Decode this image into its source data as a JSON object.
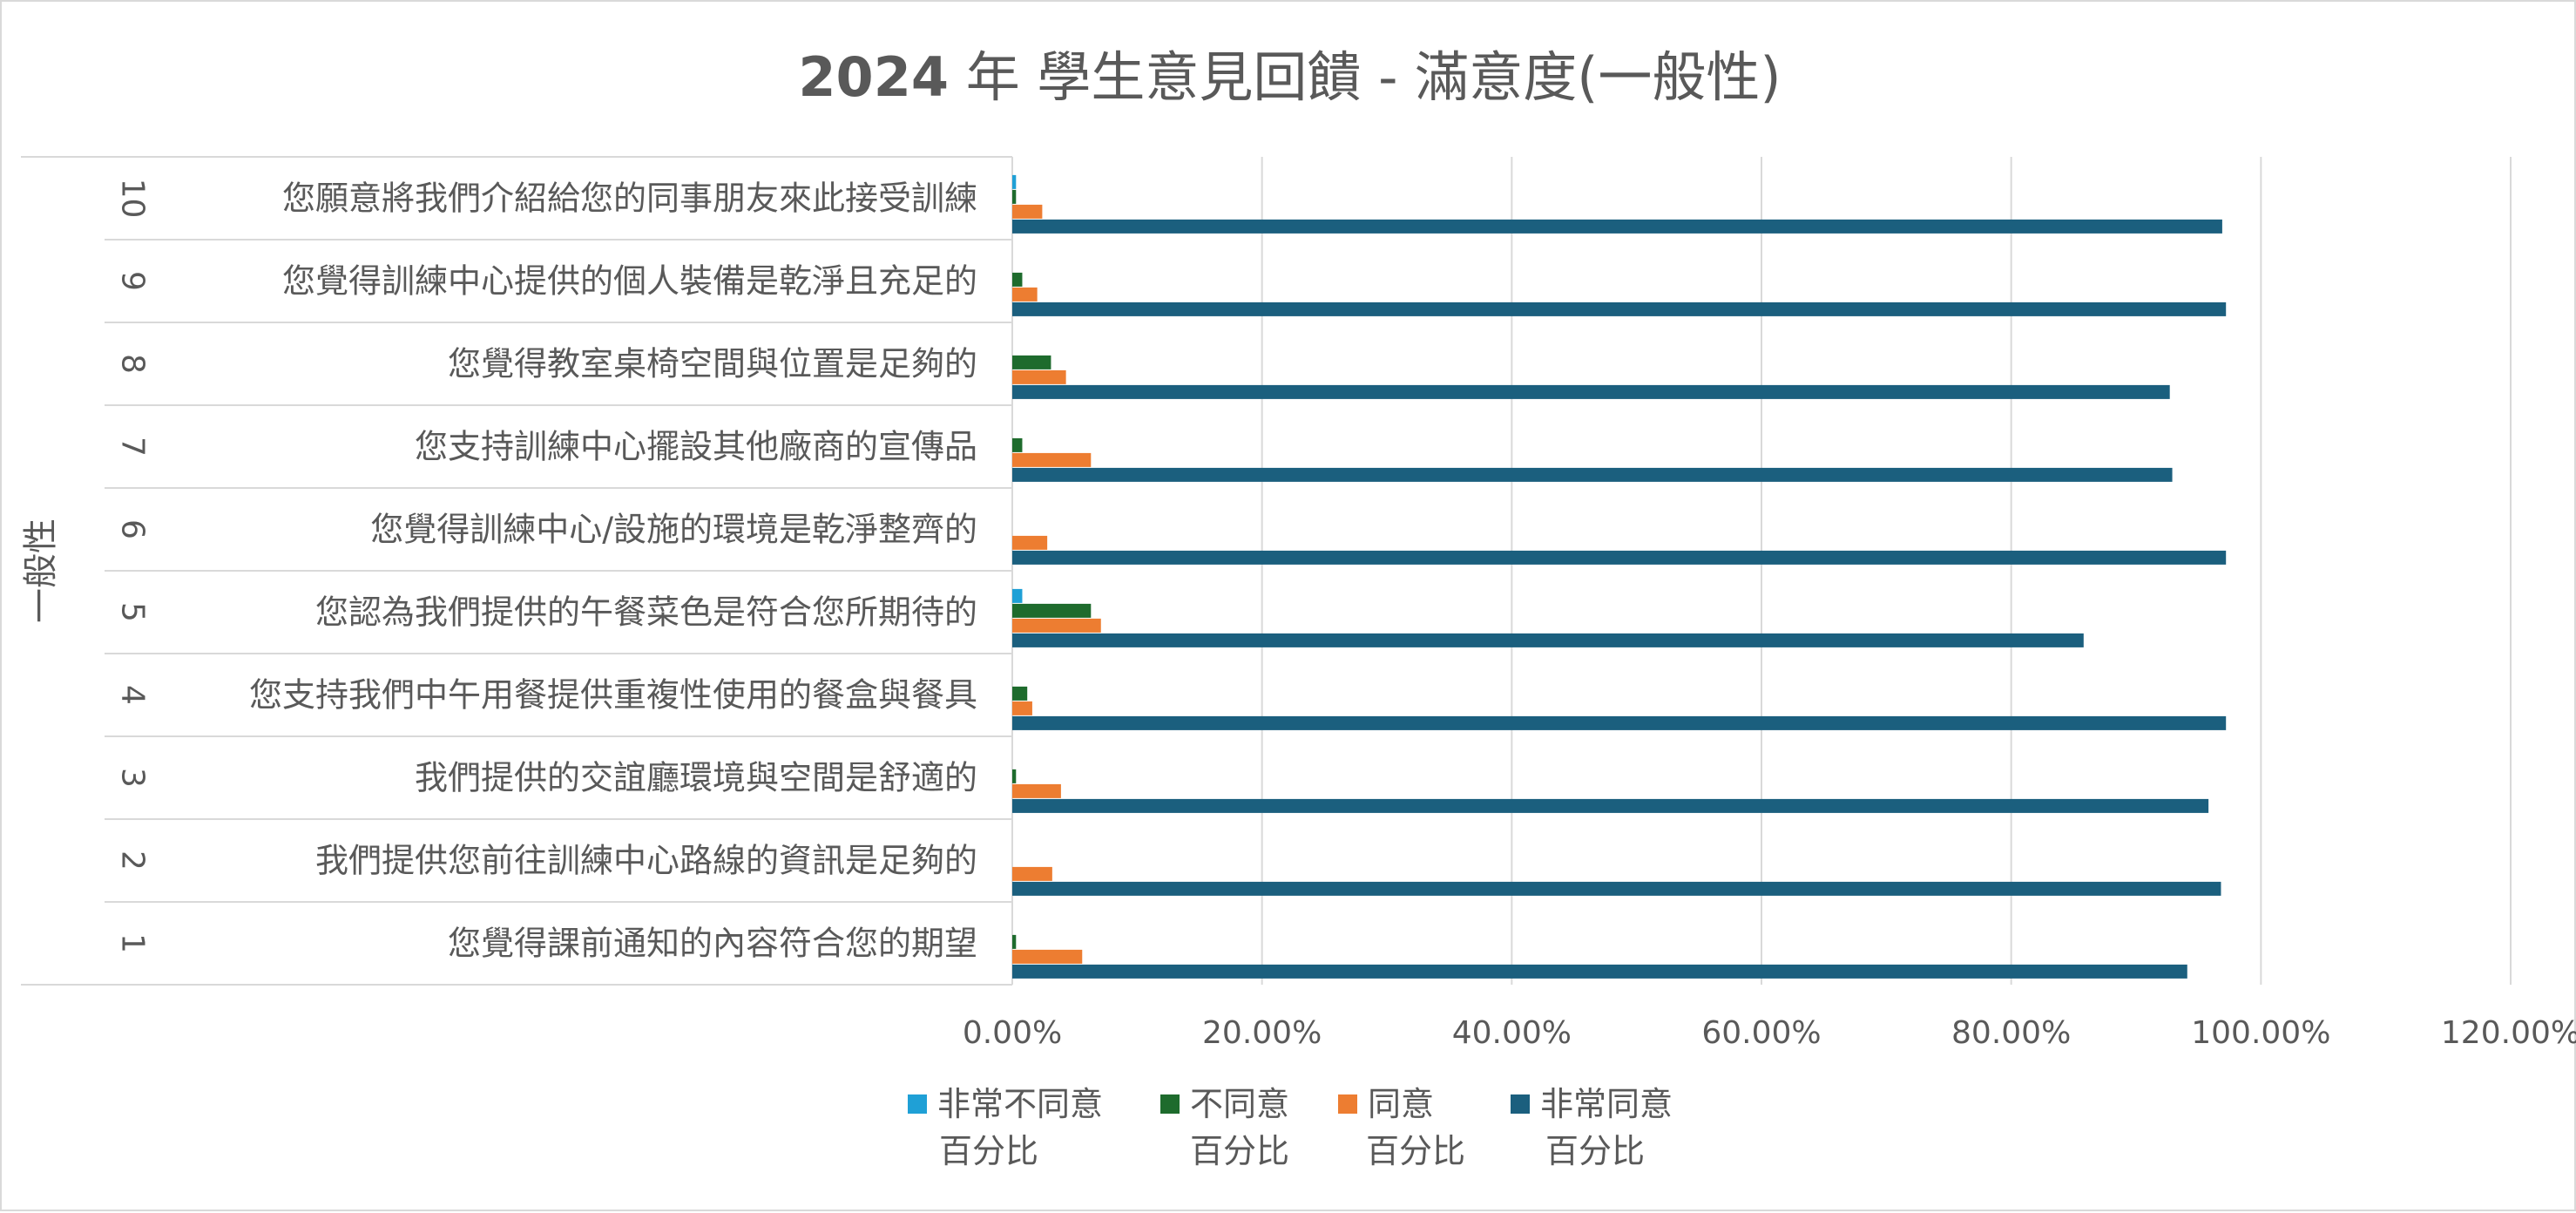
{
  "chart_data": {
    "type": "bar",
    "orientation": "horizontal",
    "title_year": "2024",
    "title_rest": "年 學生意見回饋 - 滿意度(一般性)",
    "group_label": "一般性",
    "categories": [
      {
        "num": "1",
        "label": "您覺得課前通知的內容符合您的期望"
      },
      {
        "num": "2",
        "label": "我們提供您前往訓練中心路線的資訊是足夠的"
      },
      {
        "num": "3",
        "label": "我們提供的交誼廳環境與空間是舒適的"
      },
      {
        "num": "4",
        "label": "您支持我們中午用餐提供重複性使用的餐盒與餐具"
      },
      {
        "num": "5",
        "label": "您認為我們提供的午餐菜色是符合您所期待的"
      },
      {
        "num": "6",
        "label": "您覺得訓練中心/設施的環境是乾淨整齊的"
      },
      {
        "num": "7",
        "label": "您支持訓練中心擺設其他廠商的宣傳品"
      },
      {
        "num": "8",
        "label": "您覺得教室桌椅空間與位置是足夠的"
      },
      {
        "num": "9",
        "label": "您覺得訓練中心提供的個人裝備是乾淨且充足的"
      },
      {
        "num": "10",
        "label": "您願意將我們介紹給您的同事朋友來此接受訓練"
      }
    ],
    "series": [
      {
        "name": "非常不同意百分比",
        "legend_line1": "非常不同意",
        "legend_line2": "百分比",
        "color": "#1fa0d6",
        "values": [
          0,
          0,
          0,
          0,
          0.8,
          0,
          0,
          0,
          0,
          0.3
        ]
      },
      {
        "name": "不同意百分比",
        "legend_line1": "不同意",
        "legend_line2": "百分比",
        "color": "#1e6b2d",
        "values": [
          0.3,
          0,
          0.3,
          1.2,
          6.3,
          0,
          0.8,
          3.1,
          0.8,
          0.3
        ]
      },
      {
        "name": "同意百分比",
        "legend_line1": "同意",
        "legend_line2": "百分比",
        "color": "#ed7d31",
        "values": [
          5.6,
          3.2,
          3.9,
          1.6,
          7.1,
          2.8,
          6.3,
          4.3,
          2.0,
          2.4
        ]
      },
      {
        "name": "非常同意百分比",
        "legend_line1": "非常同意",
        "legend_line2": "百分比",
        "color": "#1b5f7e",
        "values": [
          94.1,
          96.8,
          95.8,
          97.2,
          85.8,
          97.2,
          92.9,
          92.7,
          97.2,
          96.9
        ]
      }
    ],
    "xlim": [
      0,
      120
    ],
    "xticks": [
      "0.00%",
      "20.00%",
      "40.00%",
      "60.00%",
      "80.00%",
      "100.00%",
      "120.00%"
    ],
    "grid": true,
    "legend_position": "bottom"
  }
}
